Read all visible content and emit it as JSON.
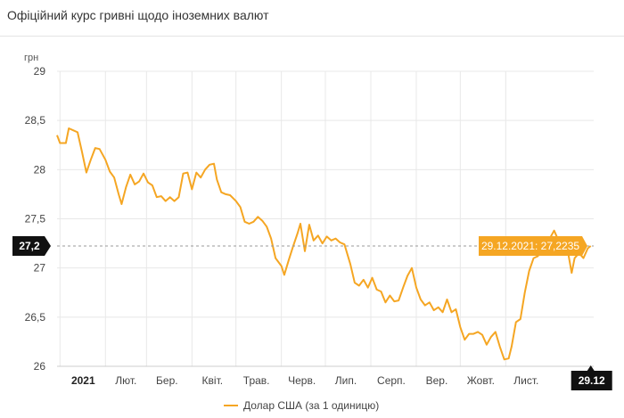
{
  "title": "Офіційний курс гривні щодо іноземних валют",
  "colors": {
    "series": "#f5a623",
    "grid": "#e8e8e8",
    "marker_bg": "#111111",
    "tooltip_bg": "#f5a623"
  },
  "chart_data": {
    "type": "line",
    "ylabel": "грн",
    "ylim": [
      26,
      29
    ],
    "yticks": [
      "29",
      "28,5",
      "28",
      "27,5",
      "27",
      "26,5",
      "26"
    ],
    "ytick_values": [
      29,
      28.5,
      28,
      27.5,
      27,
      26.5,
      26
    ],
    "xticks": [
      "2021",
      "Лют.",
      "Бер.",
      "Квіт.",
      "Трав.",
      "Черв.",
      "Лип.",
      "Серп.",
      "Вер.",
      "Жовт.",
      "Лист."
    ],
    "xtick_dates": [
      "2021-01-01",
      "2021-02-01",
      "2021-03-01",
      "2021-04-01",
      "2021-05-01",
      "2021-06-01",
      "2021-07-01",
      "2021-08-01",
      "2021-09-01",
      "2021-10-01",
      "2021-11-01"
    ],
    "x_range": [
      "2020-12-30",
      "2021-12-31"
    ],
    "crosshair": {
      "y_label": "27,2",
      "y_value": 27.2235,
      "x_label": "29.12",
      "x_date": "2021-12-29"
    },
    "tooltip": "29.12.2021: 27,2235",
    "series": [
      {
        "name": "Долар США (за 1 одиницю)",
        "points": [
          [
            "2020-12-30",
            28.35
          ],
          [
            "2021-01-01",
            28.27
          ],
          [
            "2021-01-05",
            28.27
          ],
          [
            "2021-01-07",
            28.42
          ],
          [
            "2021-01-10",
            28.4
          ],
          [
            "2021-01-13",
            28.38
          ],
          [
            "2021-01-16",
            28.18
          ],
          [
            "2021-01-19",
            27.97
          ],
          [
            "2021-01-22",
            28.1
          ],
          [
            "2021-01-25",
            28.22
          ],
          [
            "2021-01-28",
            28.21
          ],
          [
            "2021-02-01",
            28.1
          ],
          [
            "2021-02-04",
            27.98
          ],
          [
            "2021-02-07",
            27.92
          ],
          [
            "2021-02-10",
            27.75
          ],
          [
            "2021-02-12",
            27.65
          ],
          [
            "2021-02-15",
            27.82
          ],
          [
            "2021-02-18",
            27.95
          ],
          [
            "2021-02-21",
            27.85
          ],
          [
            "2021-02-24",
            27.88
          ],
          [
            "2021-02-27",
            27.96
          ],
          [
            "2021-03-02",
            27.87
          ],
          [
            "2021-03-05",
            27.84
          ],
          [
            "2021-03-08",
            27.72
          ],
          [
            "2021-03-11",
            27.73
          ],
          [
            "2021-03-14",
            27.68
          ],
          [
            "2021-03-17",
            27.72
          ],
          [
            "2021-03-20",
            27.68
          ],
          [
            "2021-03-23",
            27.72
          ],
          [
            "2021-03-26",
            27.96
          ],
          [
            "2021-03-29",
            27.97
          ],
          [
            "2021-04-01",
            27.8
          ],
          [
            "2021-04-04",
            27.97
          ],
          [
            "2021-04-07",
            27.92
          ],
          [
            "2021-04-10",
            28.0
          ],
          [
            "2021-04-13",
            28.05
          ],
          [
            "2021-04-16",
            28.06
          ],
          [
            "2021-04-18",
            27.9
          ],
          [
            "2021-04-21",
            27.77
          ],
          [
            "2021-04-24",
            27.75
          ],
          [
            "2021-04-27",
            27.74
          ],
          [
            "2021-05-01",
            27.68
          ],
          [
            "2021-05-04",
            27.62
          ],
          [
            "2021-05-07",
            27.47
          ],
          [
            "2021-05-10",
            27.45
          ],
          [
            "2021-05-13",
            27.47
          ],
          [
            "2021-05-16",
            27.52
          ],
          [
            "2021-05-19",
            27.48
          ],
          [
            "2021-05-22",
            27.42
          ],
          [
            "2021-05-25",
            27.3
          ],
          [
            "2021-05-28",
            27.1
          ],
          [
            "2021-06-01",
            27.02
          ],
          [
            "2021-06-03",
            26.93
          ],
          [
            "2021-06-06",
            27.08
          ],
          [
            "2021-06-09",
            27.22
          ],
          [
            "2021-06-12",
            27.35
          ],
          [
            "2021-06-14",
            27.45
          ],
          [
            "2021-06-17",
            27.17
          ],
          [
            "2021-06-20",
            27.44
          ],
          [
            "2021-06-23",
            27.28
          ],
          [
            "2021-06-26",
            27.33
          ],
          [
            "2021-06-29",
            27.25
          ],
          [
            "2021-07-02",
            27.32
          ],
          [
            "2021-07-05",
            27.28
          ],
          [
            "2021-07-08",
            27.3
          ],
          [
            "2021-07-11",
            27.26
          ],
          [
            "2021-07-14",
            27.24
          ],
          [
            "2021-07-18",
            27.04
          ],
          [
            "2021-07-21",
            26.85
          ],
          [
            "2021-07-24",
            26.82
          ],
          [
            "2021-07-27",
            26.88
          ],
          [
            "2021-07-30",
            26.8
          ],
          [
            "2021-08-02",
            26.9
          ],
          [
            "2021-08-05",
            26.78
          ],
          [
            "2021-08-08",
            26.76
          ],
          [
            "2021-08-11",
            26.65
          ],
          [
            "2021-08-14",
            26.72
          ],
          [
            "2021-08-17",
            26.66
          ],
          [
            "2021-08-20",
            26.67
          ],
          [
            "2021-08-23",
            26.8
          ],
          [
            "2021-08-26",
            26.92
          ],
          [
            "2021-08-29",
            27.0
          ],
          [
            "2021-09-01",
            26.8
          ],
          [
            "2021-09-04",
            26.68
          ],
          [
            "2021-09-07",
            26.62
          ],
          [
            "2021-09-10",
            26.65
          ],
          [
            "2021-09-13",
            26.57
          ],
          [
            "2021-09-16",
            26.6
          ],
          [
            "2021-09-19",
            26.55
          ],
          [
            "2021-09-22",
            26.68
          ],
          [
            "2021-09-25",
            26.55
          ],
          [
            "2021-09-28",
            26.58
          ],
          [
            "2021-10-01",
            26.4
          ],
          [
            "2021-10-04",
            26.27
          ],
          [
            "2021-10-07",
            26.33
          ],
          [
            "2021-10-10",
            26.33
          ],
          [
            "2021-10-13",
            26.35
          ],
          [
            "2021-10-16",
            26.32
          ],
          [
            "2021-10-19",
            26.22
          ],
          [
            "2021-10-22",
            26.3
          ],
          [
            "2021-10-25",
            26.35
          ],
          [
            "2021-10-28",
            26.2
          ],
          [
            "2021-10-31",
            26.07
          ],
          [
            "2021-11-03",
            26.08
          ],
          [
            "2021-11-05",
            26.2
          ],
          [
            "2021-11-08",
            26.45
          ],
          [
            "2021-11-11",
            26.48
          ],
          [
            "2021-11-14",
            26.75
          ],
          [
            "2021-11-17",
            26.97
          ],
          [
            "2021-11-20",
            27.1
          ],
          [
            "2021-11-23",
            27.12
          ],
          [
            "2021-11-26",
            27.3
          ],
          [
            "2021-11-29",
            27.2
          ],
          [
            "2021-12-01",
            27.3
          ],
          [
            "2021-12-04",
            27.38
          ],
          [
            "2021-12-07",
            27.28
          ],
          [
            "2021-12-10",
            27.27
          ],
          [
            "2021-12-13",
            27.2
          ],
          [
            "2021-12-16",
            26.95
          ],
          [
            "2021-12-18",
            27.1
          ],
          [
            "2021-12-21",
            27.15
          ],
          [
            "2021-12-24",
            27.1
          ],
          [
            "2021-12-27",
            27.2
          ],
          [
            "2021-12-29",
            27.2235
          ]
        ]
      }
    ]
  }
}
